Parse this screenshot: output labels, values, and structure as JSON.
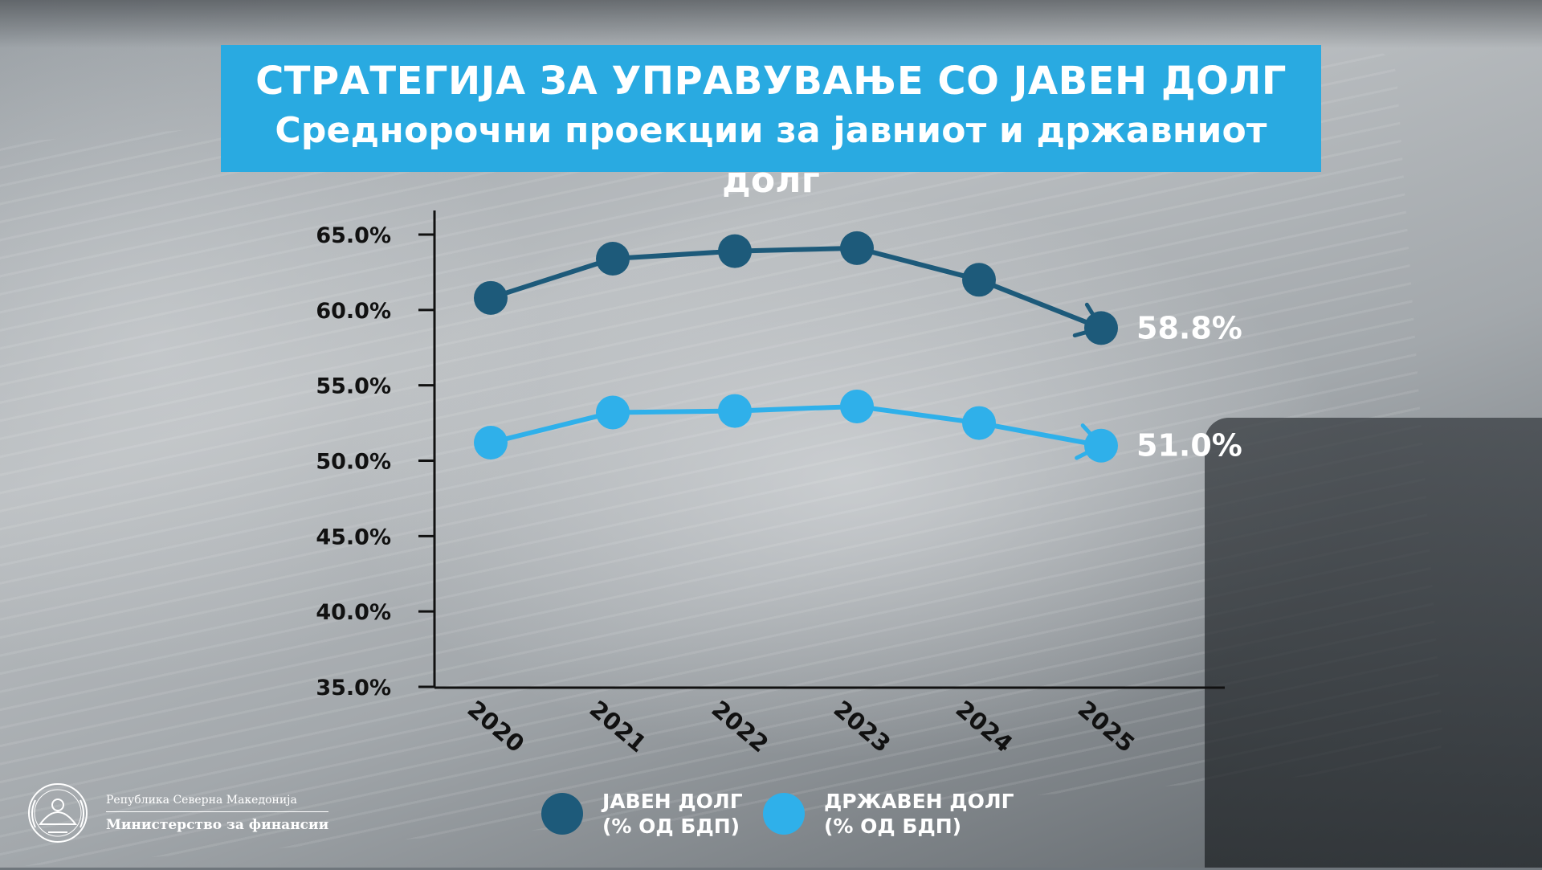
{
  "header": {
    "title": "СТРАТЕГИЈА ЗА УПРАВУВАЊЕ СО ЈАВЕН ДОЛГ",
    "subtitle": "Среднорочни проекции за јавниот и државниот долг"
  },
  "colors": {
    "title_bg": "#29aae1",
    "public_debt": "#1d5a7a",
    "state_debt": "#2fb0ea"
  },
  "chart_data": {
    "type": "line",
    "categories": [
      "2020",
      "2021",
      "2022",
      "2023",
      "2024",
      "2025"
    ],
    "y_ticks": [
      "65.0%",
      "60.0%",
      "55.0%",
      "50.0%",
      "45.0%",
      "40.0%",
      "35.0%"
    ],
    "ylim": [
      35,
      65
    ],
    "grid": false,
    "legend_position": "bottom",
    "series": [
      {
        "name": "ЈАВЕН ДОЛГ (% ОД БДП)",
        "values": [
          60.8,
          63.4,
          63.9,
          64.1,
          62.0,
          58.8
        ],
        "end_label": "58.8%",
        "color": "#1d5a7a"
      },
      {
        "name": "ДРЖАВЕН ДОЛГ (% ОД БДП)",
        "values": [
          51.2,
          53.2,
          53.3,
          53.6,
          52.5,
          51.0
        ],
        "end_label": "51.0%",
        "color": "#2fb0ea"
      }
    ]
  },
  "legend": {
    "public_debt": "ЈАВЕН ДОЛГ\n(% ОД БДП)",
    "state_debt": "ДРЖАВЕН ДОЛГ\n(% ОД БДП)"
  },
  "logo": {
    "line1": "Република Северна Македонија",
    "line2": "Министерство за финансии",
    "icon": "state-emblem-icon"
  }
}
